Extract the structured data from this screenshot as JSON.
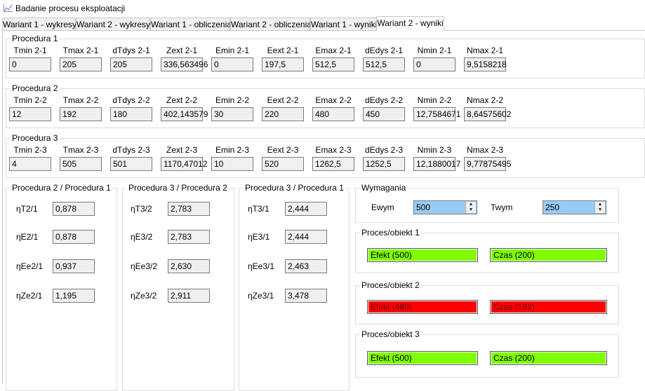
{
  "window": {
    "title": "Badanie procesu eksploatacji"
  },
  "tabs": [
    {
      "label": "Wariant 1 - wykresy"
    },
    {
      "label": "Wariant 2 - wykresy"
    },
    {
      "label": "Wariant 1 - obliczenia"
    },
    {
      "label": "Wariant 2 - obliczenia"
    },
    {
      "label": "Wariant 1 - wyniki"
    },
    {
      "label": "Wariant 2 - wyniki"
    }
  ],
  "procedures": [
    {
      "title": "Procedura 1",
      "labels": [
        "Tmin 2-1",
        "Tmax 2-1",
        "dTdys 2-1",
        "Zext 2-1",
        "Emin 2-1",
        "Eext 2-1",
        "Emax 2-1",
        "dEdys 2-1",
        "Nmin 2-1",
        "Nmax 2-1"
      ],
      "values": [
        "0",
        "205",
        "205",
        "336,563496",
        "0",
        "197,5",
        "512,5",
        "512,5",
        "0",
        "9,5158218"
      ]
    },
    {
      "title": "Procedura 2",
      "labels": [
        "Tmin 2-2",
        "Tmax 2-2",
        "dTdys 2-2",
        "Zext 2-2",
        "Emin 2-2",
        "Eext 2-2",
        "Emax 2-2",
        "dEdys 2-2",
        "Nmin 2-2",
        "Nmax 2-2"
      ],
      "values": [
        "12",
        "192",
        "180",
        "402,143579",
        "30",
        "220",
        "480",
        "450",
        "12,7584671",
        "8,64575602"
      ]
    },
    {
      "title": "Procedura 3",
      "labels": [
        "Tmin 2-3",
        "Tmax 2-3",
        "dTdys 2-3",
        "Zext 2-3",
        "Emin 2-3",
        "Eext 2-3",
        "Emax 2-3",
        "dEdys 2-3",
        "Nmin 2-3",
        "Nmax 2-3"
      ],
      "values": [
        "4",
        "505",
        "501",
        "1170,47012",
        "10",
        "520",
        "1262,5",
        "1252,5",
        "12,1880017",
        "9,77875495"
      ]
    }
  ],
  "ratios": [
    {
      "title": "Procedura 2 / Procedura 1",
      "rows": [
        {
          "label": "ηT2/1",
          "value": "0,878"
        },
        {
          "label": "ηE2/1",
          "value": "0,878"
        },
        {
          "label": "ηEe2/1",
          "value": "0,937"
        },
        {
          "label": "ηZe2/1",
          "value": "1,195"
        }
      ]
    },
    {
      "title": "Procedura 3 / Procedura 2",
      "rows": [
        {
          "label": "ηT3/2",
          "value": "2,783"
        },
        {
          "label": "ηE3/2",
          "value": "2,783"
        },
        {
          "label": "ηEe3/2",
          "value": "2,630"
        },
        {
          "label": "ηZe3/2",
          "value": "2,911"
        }
      ]
    },
    {
      "title": "Procedura 3 / Procedura 1",
      "rows": [
        {
          "label": "ηT3/1",
          "value": "2,444"
        },
        {
          "label": "ηE3/1",
          "value": "2,444"
        },
        {
          "label": "ηEe3/1",
          "value": "2,463"
        },
        {
          "label": "ηZe3/1",
          "value": "3,478"
        }
      ]
    }
  ],
  "requirements": {
    "title": "Wymagania",
    "ewym_label": "Ewym",
    "ewym_value": "500",
    "twym_label": "Twym",
    "twym_value": "250"
  },
  "objects": [
    {
      "title": "Proces/obiekt 1",
      "effect": "Efekt (500)",
      "effect_status": "green",
      "time": "Czas (200)",
      "time_status": "green"
    },
    {
      "title": "Proces/obiekt 2",
      "effect": "Efekt (480)",
      "effect_status": "red",
      "time": "Czas (192)",
      "time_status": "red"
    },
    {
      "title": "Proces/obiekt 3",
      "effect": "Efekt (500)",
      "effect_status": "green",
      "time": "Czas (200)",
      "time_status": "green"
    }
  ],
  "colors": {
    "ok": "#80ff00",
    "fail": "#ff0000",
    "input_bg": "#99ccf5"
  }
}
